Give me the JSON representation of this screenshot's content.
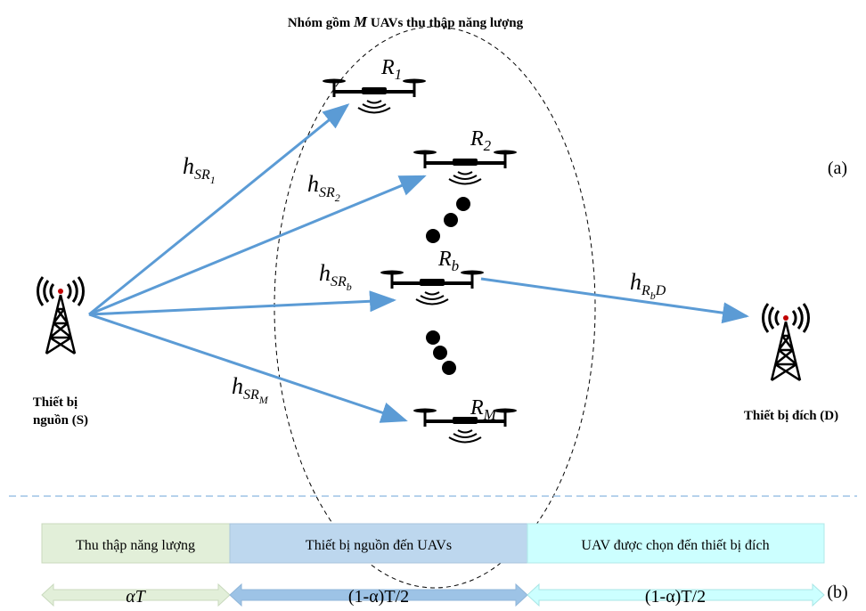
{
  "header": {
    "title": [
      "Nhóm gồm ",
      "M",
      " UAVs thu thập năng lượng"
    ],
    "part_a": "(a)",
    "part_b": "(b)"
  },
  "source": {
    "line1": "Thiết bị",
    "line2": "nguồn (S)"
  },
  "destination": {
    "label": "Thiết bị đích (D)"
  },
  "uavs": [
    {
      "base": "R",
      "sub": "1"
    },
    {
      "base": "R",
      "sub": "2"
    },
    {
      "base": "R",
      "sub": "b"
    },
    {
      "base": "R",
      "sub": "M"
    }
  ],
  "channels": [
    {
      "base": "h",
      "sub": "SR",
      "subsub": "1"
    },
    {
      "base": "h",
      "sub": "SR",
      "subsub": "2"
    },
    {
      "base": "h",
      "sub": "SR",
      "subsub": "b"
    },
    {
      "base": "h",
      "sub": "SR",
      "subsub": "M"
    },
    {
      "base": "h",
      "sub": "R",
      "subsub": "b",
      "sub2": "D"
    }
  ],
  "timeline": {
    "phases": [
      "Thu thập năng lượng",
      "Thiết bị nguồn đến UAVs",
      "UAV được chọn đến thiết bị đích"
    ],
    "durations": [
      "αT",
      "(1-α)T/2",
      "(1-α)T/2"
    ]
  }
}
